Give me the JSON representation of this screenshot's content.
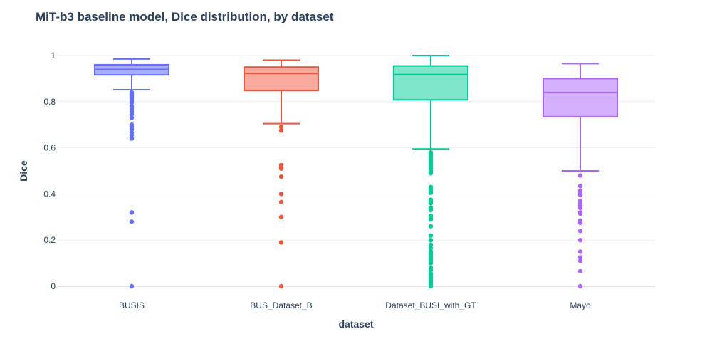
{
  "chart_data": {
    "type": "box",
    "title": "MiT-b3 baseline model, Dice distribution, by dataset",
    "xlabel": "dataset",
    "ylabel": "Dice",
    "ylim": [
      0,
      1
    ],
    "yticks": [
      0,
      0.2,
      0.4,
      0.6,
      0.8,
      1
    ],
    "ytick_labels": [
      "0",
      "0.2",
      "0.4",
      "0.6",
      "0.8",
      "1"
    ],
    "grid": true,
    "categories": [
      "BUSIS",
      "BUS_Dataset_B",
      "Dataset_BUSI_with_GT",
      "Mayo"
    ],
    "series": [
      {
        "category": "BUSIS",
        "color": "#636efa",
        "fill": "#a9aefc",
        "min": 0.852,
        "q1": 0.916,
        "median": 0.94,
        "q3": 0.96,
        "max": 0.985,
        "outliers": [
          0.84,
          0.835,
          0.83,
          0.825,
          0.82,
          0.81,
          0.8,
          0.795,
          0.78,
          0.77,
          0.76,
          0.755,
          0.745,
          0.73,
          0.7,
          0.69,
          0.68,
          0.665,
          0.655,
          0.64,
          0.32,
          0.28,
          0.0
        ]
      },
      {
        "category": "BUS_Dataset_B",
        "color": "#ef553b",
        "fill": "#f7aa9d",
        "min": 0.705,
        "q1": 0.848,
        "median": 0.922,
        "q3": 0.95,
        "max": 0.98,
        "outliers": [
          0.69,
          0.675,
          0.525,
          0.515,
          0.51,
          0.475,
          0.4,
          0.365,
          0.3,
          0.19,
          0.0
        ]
      },
      {
        "category": "Dataset_BUSI_with_GT",
        "color": "#00cc96",
        "fill": "#7fe5ca",
        "min": 0.595,
        "q1": 0.808,
        "median": 0.918,
        "q3": 0.955,
        "max": 1.0,
        "outliers": [
          0.58,
          0.57,
          0.56,
          0.55,
          0.54,
          0.53,
          0.52,
          0.51,
          0.5,
          0.495,
          0.49,
          0.43,
          0.42,
          0.41,
          0.405,
          0.375,
          0.37,
          0.36,
          0.34,
          0.335,
          0.33,
          0.305,
          0.295,
          0.29,
          0.26,
          0.22,
          0.2,
          0.18,
          0.165,
          0.15,
          0.14,
          0.13,
          0.12,
          0.11,
          0.1,
          0.08,
          0.07,
          0.055,
          0.045,
          0.035,
          0.025,
          0.015,
          0.005,
          0.0
        ]
      },
      {
        "category": "Mayo",
        "color": "#ab63fa",
        "fill": "#d5b1fc",
        "min": 0.5,
        "q1": 0.735,
        "median": 0.84,
        "q3": 0.9,
        "max": 0.965,
        "outliers": [
          0.48,
          0.435,
          0.415,
          0.405,
          0.395,
          0.37,
          0.36,
          0.35,
          0.34,
          0.32,
          0.315,
          0.285,
          0.275,
          0.24,
          0.2,
          0.15,
          0.125,
          0.11,
          0.065,
          0.0
        ]
      }
    ]
  }
}
